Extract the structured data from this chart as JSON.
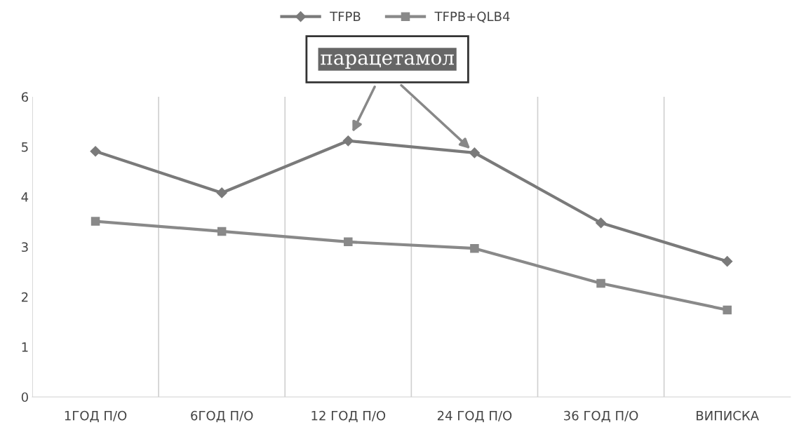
{
  "chart_data": {
    "type": "line",
    "categories": [
      "1ГОД П/О",
      "6ГОД П/О",
      "12 ГОД П/О",
      "24 ГОД П/О",
      "36 ГОД П/О",
      "ВИПИСКА"
    ],
    "series": [
      {
        "name": "TFPB",
        "color": "#7a7a7a",
        "marker": "diamond",
        "values": [
          4.91,
          4.08,
          5.12,
          4.88,
          3.48,
          2.71
        ]
      },
      {
        "name": "TFPB+QLB4",
        "color": "#898989",
        "marker": "square",
        "values": [
          3.51,
          3.31,
          3.1,
          2.97,
          2.27,
          1.74
        ]
      }
    ],
    "annotations": [
      "парацетамол"
    ],
    "ylim": [
      0,
      6
    ],
    "yticks": [
      0,
      1,
      2,
      3,
      4,
      5,
      6
    ],
    "grid": "x",
    "legend": "top",
    "line_style": "solid"
  }
}
